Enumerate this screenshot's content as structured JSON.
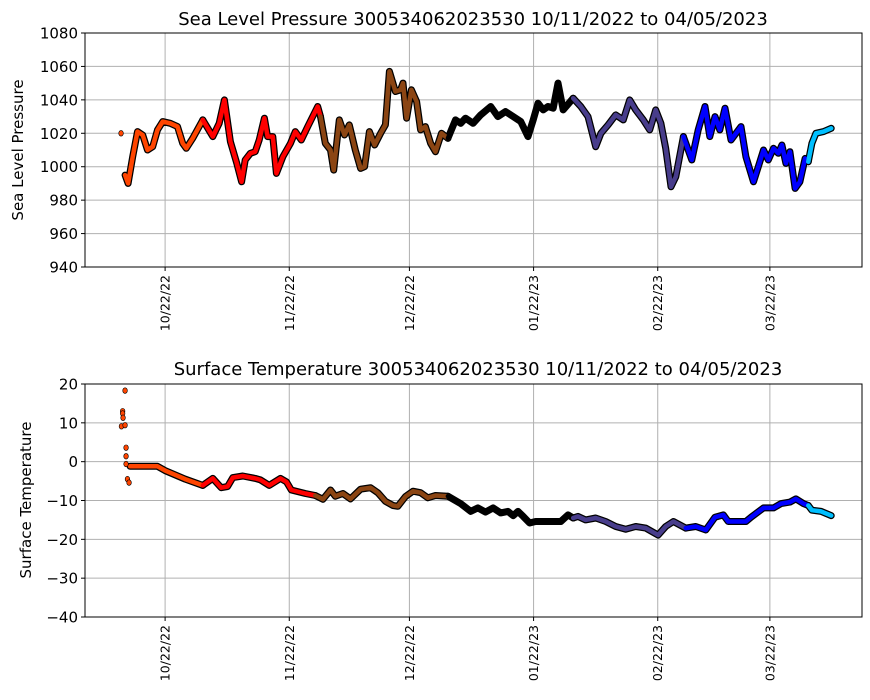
{
  "colors": {
    "segments": [
      "#ff4500",
      "#ff0000",
      "#8b4513",
      "#000000",
      "#483d8b",
      "#0000ff",
      "#00bfff"
    ],
    "grid": "#b0b0b0"
  },
  "x_axis": {
    "unit": "days since 10/11/2022",
    "range": [
      -9,
      185
    ],
    "ticks": [
      {
        "day": 11,
        "label": "10/22/22"
      },
      {
        "day": 42,
        "label": "11/22/22"
      },
      {
        "day": 72,
        "label": "12/22/22"
      },
      {
        "day": 103,
        "label": "01/22/23"
      },
      {
        "day": 134,
        "label": "02/22/23"
      },
      {
        "day": 162,
        "label": "03/22/23"
      }
    ],
    "segment_breaks": [
      21,
      49.8,
      82.3,
      114,
      141.6,
      172.3
    ]
  },
  "chart_data": [
    {
      "type": "line",
      "title": "Sea Level Pressure 300534062023530  10/11/2022 to 04/05/2023",
      "xlabel": "",
      "ylabel": "Sea Level Pressure",
      "ylim": [
        940,
        1080
      ],
      "yticks": [
        940,
        960,
        980,
        1000,
        1020,
        1040,
        1060,
        1080
      ],
      "grid": true,
      "isolated_points": [
        [
          0,
          1020
        ]
      ],
      "points": [
        [
          1,
          995
        ],
        [
          1.75,
          990
        ],
        [
          2.9,
          1006
        ],
        [
          4.1,
          1021
        ],
        [
          5.4,
          1019
        ],
        [
          6.6,
          1010
        ],
        [
          7.9,
          1012
        ],
        [
          9.1,
          1022
        ],
        [
          10.4,
          1027
        ],
        [
          12.3,
          1026
        ],
        [
          14.1,
          1024
        ],
        [
          15.4,
          1014
        ],
        [
          16.3,
          1011
        ],
        [
          17.9,
          1017
        ],
        [
          20.4,
          1028
        ],
        [
          22.9,
          1018
        ],
        [
          24.5,
          1026
        ],
        [
          25.8,
          1040
        ],
        [
          27.3,
          1015
        ],
        [
          28.9,
          1002
        ],
        [
          30.1,
          991
        ],
        [
          31,
          1004
        ],
        [
          32.3,
          1008
        ],
        [
          33.5,
          1009
        ],
        [
          34.5,
          1016
        ],
        [
          35.8,
          1029
        ],
        [
          36.6,
          1018
        ],
        [
          37.9,
          1018
        ],
        [
          38.8,
          996
        ],
        [
          40.4,
          1006
        ],
        [
          42.3,
          1014
        ],
        [
          43.5,
          1021
        ],
        [
          45,
          1016
        ],
        [
          46.6,
          1024
        ],
        [
          49.1,
          1036
        ],
        [
          49.8,
          1030
        ],
        [
          51,
          1014
        ],
        [
          52.3,
          1010
        ],
        [
          53.1,
          998
        ],
        [
          54.5,
          1028
        ],
        [
          55.8,
          1019
        ],
        [
          57,
          1025
        ],
        [
          58.5,
          1010
        ],
        [
          59.8,
          999
        ],
        [
          60.8,
          1000
        ],
        [
          62,
          1021
        ],
        [
          63.3,
          1013
        ],
        [
          64.8,
          1020
        ],
        [
          66,
          1025
        ],
        [
          67,
          1057
        ],
        [
          68.5,
          1045
        ],
        [
          69.8,
          1046
        ],
        [
          70.4,
          1050
        ],
        [
          71.3,
          1029
        ],
        [
          72.5,
          1046
        ],
        [
          73.8,
          1039
        ],
        [
          74.8,
          1022
        ],
        [
          76,
          1024
        ],
        [
          77.3,
          1014
        ],
        [
          78.5,
          1009
        ],
        [
          80,
          1020
        ],
        [
          81.6,
          1017
        ],
        [
          83.5,
          1028
        ],
        [
          84.8,
          1026
        ],
        [
          86,
          1029
        ],
        [
          87.9,
          1026
        ],
        [
          89.8,
          1031
        ],
        [
          92.3,
          1036
        ],
        [
          94.1,
          1030
        ],
        [
          96,
          1033
        ],
        [
          97.9,
          1030
        ],
        [
          99.8,
          1027
        ],
        [
          101.6,
          1018
        ],
        [
          102.9,
          1028
        ],
        [
          104.1,
          1038
        ],
        [
          105.4,
          1034
        ],
        [
          106.6,
          1036
        ],
        [
          107.9,
          1035
        ],
        [
          109.1,
          1050
        ],
        [
          110.4,
          1034
        ],
        [
          112.9,
          1041
        ],
        [
          114.8,
          1036
        ],
        [
          116.6,
          1030
        ],
        [
          118.5,
          1012
        ],
        [
          119.8,
          1020
        ],
        [
          121.6,
          1025
        ],
        [
          123.5,
          1031
        ],
        [
          125.4,
          1028
        ],
        [
          127,
          1040
        ],
        [
          128.5,
          1034
        ],
        [
          130.4,
          1028
        ],
        [
          132,
          1022
        ],
        [
          133.5,
          1034
        ],
        [
          134.8,
          1026
        ],
        [
          136,
          1011
        ],
        [
          137.3,
          988
        ],
        [
          138.5,
          994
        ],
        [
          140.4,
          1018
        ],
        [
          142.5,
          1004
        ],
        [
          144.1,
          1022
        ],
        [
          145.8,
          1036
        ],
        [
          147,
          1018
        ],
        [
          148.3,
          1030
        ],
        [
          149.5,
          1022
        ],
        [
          150.8,
          1035
        ],
        [
          152.3,
          1016
        ],
        [
          154.8,
          1024
        ],
        [
          156,
          1006
        ],
        [
          157.9,
          991
        ],
        [
          159.1,
          1000
        ],
        [
          160.4,
          1010
        ],
        [
          161.6,
          1004
        ],
        [
          162.9,
          1011
        ],
        [
          164.1,
          1008
        ],
        [
          165,
          1013
        ],
        [
          166,
          1002
        ],
        [
          167,
          1009
        ],
        [
          168.3,
          987
        ],
        [
          169.5,
          991
        ],
        [
          170.8,
          1005
        ],
        [
          171.6,
          1003
        ],
        [
          172.5,
          1014
        ],
        [
          173.5,
          1020
        ],
        [
          175.4,
          1021
        ],
        [
          177.3,
          1023
        ]
      ]
    },
    {
      "type": "line",
      "title": "Surface Temperature 300534062023530  10/11/2022 to 04/05/2023",
      "xlabel": "",
      "ylabel": "Surface Temperature",
      "ylim": [
        -40,
        20
      ],
      "yticks": [
        -40,
        -30,
        -20,
        -10,
        0,
        10,
        20
      ],
      "grid": true,
      "isolated_points": [
        [
          1,
          18.3
        ],
        [
          0.4,
          13
        ],
        [
          0.4,
          12.4
        ],
        [
          0.5,
          11.3
        ],
        [
          0.1,
          9.1
        ],
        [
          1,
          9.4
        ],
        [
          1.25,
          3.6
        ],
        [
          1.25,
          1.4
        ],
        [
          1.25,
          -0.6
        ],
        [
          1.6,
          -4.5
        ],
        [
          2,
          -5.4
        ]
      ],
      "points": [
        [
          2.25,
          -1.2
        ],
        [
          9.1,
          -1.2
        ],
        [
          11,
          -2.3
        ],
        [
          16,
          -4.5
        ],
        [
          20.4,
          -6.1
        ],
        [
          22.9,
          -4.3
        ],
        [
          25,
          -6.7
        ],
        [
          26.6,
          -6.4
        ],
        [
          27.9,
          -4.1
        ],
        [
          30.4,
          -3.7
        ],
        [
          33.5,
          -4.3
        ],
        [
          34.8,
          -4.7
        ],
        [
          37,
          -6.1
        ],
        [
          39.8,
          -4.3
        ],
        [
          41.3,
          -5.2
        ],
        [
          42.5,
          -7.3
        ],
        [
          46,
          -8.2
        ],
        [
          48.5,
          -8.7
        ],
        [
          50.4,
          -9.7
        ],
        [
          52.3,
          -7.3
        ],
        [
          53.5,
          -8.9
        ],
        [
          55.4,
          -8.2
        ],
        [
          57.3,
          -9.6
        ],
        [
          59.8,
          -7.1
        ],
        [
          62.3,
          -6.7
        ],
        [
          64.1,
          -8
        ],
        [
          66,
          -10.2
        ],
        [
          67.9,
          -11.3
        ],
        [
          69.1,
          -11.5
        ],
        [
          71,
          -9
        ],
        [
          72.9,
          -7.6
        ],
        [
          74.8,
          -8
        ],
        [
          76.6,
          -9.3
        ],
        [
          78.5,
          -8.7
        ],
        [
          81.6,
          -8.9
        ],
        [
          84.8,
          -10.8
        ],
        [
          87.3,
          -12.8
        ],
        [
          89.1,
          -11.9
        ],
        [
          91,
          -13
        ],
        [
          92.9,
          -11.9
        ],
        [
          94.8,
          -13.2
        ],
        [
          96.6,
          -12.8
        ],
        [
          97.9,
          -13.9
        ],
        [
          99.1,
          -12.8
        ],
        [
          100.4,
          -14.1
        ],
        [
          102,
          -15.8
        ],
        [
          103.5,
          -15.4
        ],
        [
          109.8,
          -15.4
        ],
        [
          111.6,
          -13.7
        ],
        [
          112.9,
          -14.5
        ],
        [
          114.1,
          -14.1
        ],
        [
          116,
          -15
        ],
        [
          118.5,
          -14.5
        ],
        [
          121,
          -15.4
        ],
        [
          123.5,
          -16.7
        ],
        [
          126,
          -17.4
        ],
        [
          128.5,
          -16.7
        ],
        [
          131,
          -17.1
        ],
        [
          134.1,
          -18.9
        ],
        [
          136,
          -16.7
        ],
        [
          137.9,
          -15.4
        ],
        [
          141,
          -17.1
        ],
        [
          143.5,
          -16.7
        ],
        [
          146,
          -17.6
        ],
        [
          148.3,
          -14.3
        ],
        [
          150.4,
          -13.7
        ],
        [
          151.6,
          -15.4
        ],
        [
          156,
          -15.4
        ],
        [
          157.3,
          -14.3
        ],
        [
          160.4,
          -11.9
        ],
        [
          162.9,
          -11.9
        ],
        [
          164.8,
          -10.8
        ],
        [
          167,
          -10.4
        ],
        [
          168.5,
          -9.6
        ],
        [
          170.4,
          -10.8
        ],
        [
          171.6,
          -11.3
        ],
        [
          172.5,
          -12.5
        ],
        [
          174.8,
          -12.8
        ],
        [
          177.3,
          -13.9
        ]
      ]
    }
  ]
}
